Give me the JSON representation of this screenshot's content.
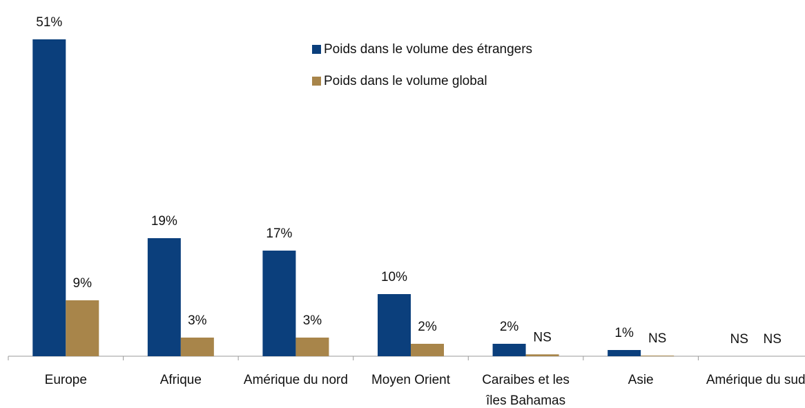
{
  "chart_data": {
    "type": "bar",
    "categories": [
      "Europe",
      "Afrique",
      "Amérique du nord",
      "Moyen Orient",
      "Caraibes et les îles Bahamas",
      "Asie",
      "Amérique du sud"
    ],
    "series": [
      {
        "name": "Poids dans le volume des étrangers",
        "color": "#0b3f7c",
        "values": [
          51,
          19,
          17,
          10,
          2,
          1,
          0
        ],
        "value_labels": [
          "51%",
          "19%",
          "17%",
          "10%",
          "2%",
          "1%",
          "NS"
        ]
      },
      {
        "name": "Poids dans le volume global",
        "color": "#a8854a",
        "values": [
          9,
          3,
          3,
          2,
          0.3,
          0.1,
          0
        ],
        "value_labels": [
          "9%",
          "3%",
          "3%",
          "2%",
          "NS",
          "NS",
          "NS"
        ]
      }
    ],
    "ylim": [
      0,
      55
    ]
  }
}
